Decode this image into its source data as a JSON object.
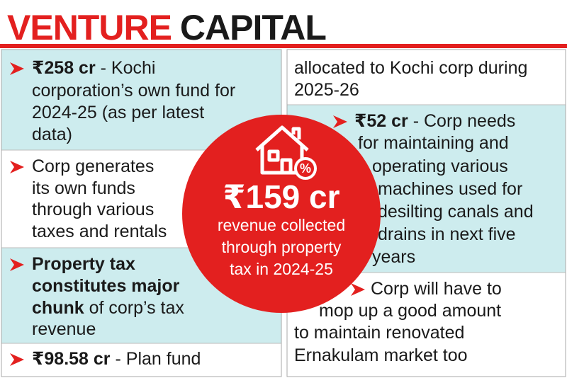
{
  "header": {
    "title_red": "VENTURE",
    "title_black": "CAPITAL"
  },
  "left_column": {
    "items": [
      {
        "lines": [
          [
            {
              "text": "₹258 cr",
              "bold": true
            },
            {
              "text": " - Kochi"
            }
          ],
          [
            {
              "text": "corporation’s own fund for"
            }
          ],
          [
            {
              "text": "2024-25 (as per latest"
            }
          ],
          [
            {
              "text": "data)"
            }
          ]
        ]
      },
      {
        "lines": [
          [
            {
              "text": "Corp generates"
            }
          ],
          [
            {
              "text": "its own funds"
            }
          ],
          [
            {
              "text": "through various"
            }
          ],
          [
            {
              "text": "taxes and rentals"
            }
          ]
        ]
      },
      {
        "lines": [
          [
            {
              "text": "Property tax",
              "bold": true
            }
          ],
          [
            {
              "text": "constitutes major",
              "bold": true
            }
          ],
          [
            {
              "text": "chunk",
              "bold": true
            },
            {
              "text": " of corp’s tax"
            }
          ],
          [
            {
              "text": "revenue"
            }
          ]
        ]
      },
      {
        "lines": [
          [
            {
              "text": "₹98.58 cr",
              "bold": true
            },
            {
              "text": " - Plan fund"
            }
          ]
        ]
      }
    ]
  },
  "right_column": {
    "items": [
      {
        "lines": [
          [
            {
              "text": "allocated to Kochi corp during"
            }
          ],
          [
            {
              "text": "2025-26"
            }
          ]
        ]
      },
      {
        "lines": [
          [
            {
              "text": "₹52 cr",
              "bold": true
            },
            {
              "text": " - Corp needs"
            }
          ],
          [
            {
              "text": "for maintaining and"
            }
          ],
          [
            {
              "text": "operating various"
            }
          ],
          [
            {
              "text": "machines used for"
            }
          ],
          [
            {
              "text": "desilting canals and"
            }
          ],
          [
            {
              "text": "drains in next five"
            }
          ],
          [
            {
              "text": "years"
            }
          ]
        ]
      },
      {
        "lines": [
          [
            {
              "text": "Corp will have to"
            }
          ],
          [
            {
              "text": "mop up a good amount"
            }
          ],
          [
            {
              "text": "to maintain renovated"
            }
          ],
          [
            {
              "text": "Ernakulam market too"
            }
          ]
        ]
      }
    ]
  },
  "center": {
    "amount": "₹159 cr",
    "lines": [
      "revenue collected",
      "through property",
      "tax in 2024-25"
    ]
  }
}
